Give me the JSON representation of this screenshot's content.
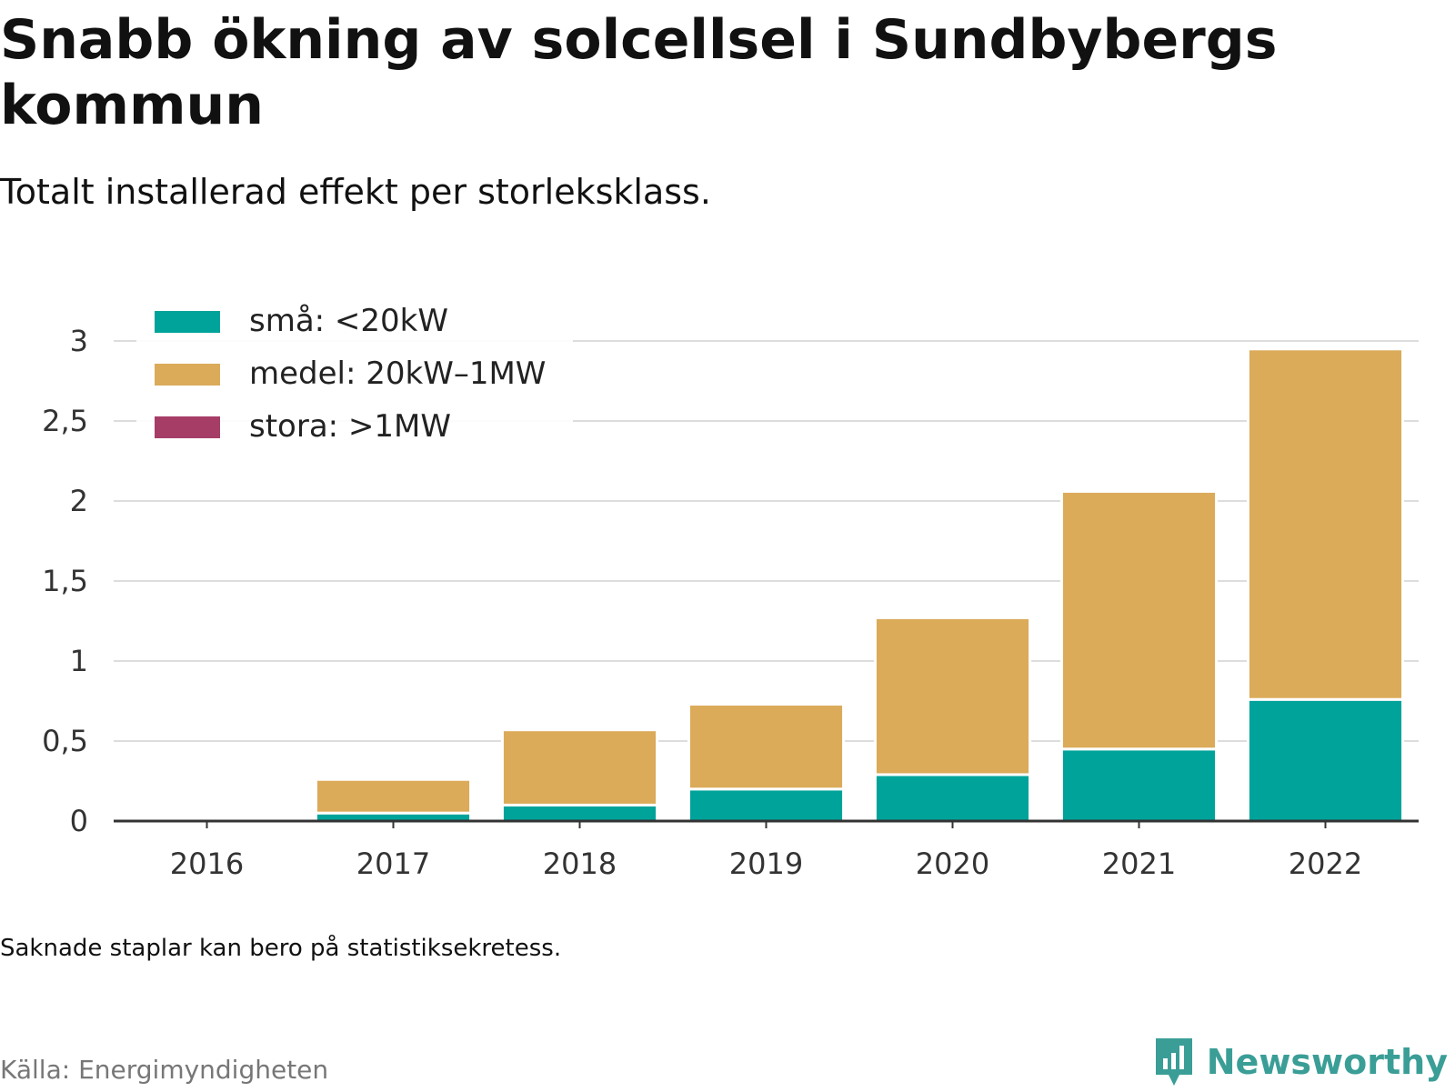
{
  "title": "Snabb ökning av solcellsel i Sundbybergs kommun",
  "subtitle": "Totalt installerad effekt per storleksklass.",
  "note": "Saknade staplar kan bero på statistiksekretess.",
  "source": "Källa: Energimyndigheten",
  "brand": {
    "name": "Newsworthy",
    "icon": "newsworthy-logo-icon",
    "color": "#3a9e97"
  },
  "chart_data": {
    "type": "bar",
    "stacked": true,
    "categories": [
      "2016",
      "2017",
      "2018",
      "2019",
      "2020",
      "2021",
      "2022"
    ],
    "series": [
      {
        "name": "små: <20kW",
        "color": "#00a39a",
        "values": [
          0,
          0.05,
          0.1,
          0.2,
          0.29,
          0.45,
          0.76
        ]
      },
      {
        "name": "medel: 20kW–1MW",
        "color": "#dbab5a",
        "values": [
          0,
          0.21,
          0.47,
          0.53,
          0.98,
          1.61,
          2.19
        ]
      },
      {
        "name": "stora: >1MW",
        "color": "#a63d67",
        "values": [
          0,
          0,
          0,
          0,
          0,
          0,
          0
        ]
      }
    ],
    "yticks": [
      "0",
      "0,5",
      "1",
      "1,5",
      "2",
      "2,5",
      "3"
    ],
    "ytick_values": [
      0,
      0.5,
      1,
      1.5,
      2,
      2.5,
      3
    ],
    "ylim": [
      0,
      3
    ],
    "grid": true,
    "legend_position": "top-left"
  }
}
